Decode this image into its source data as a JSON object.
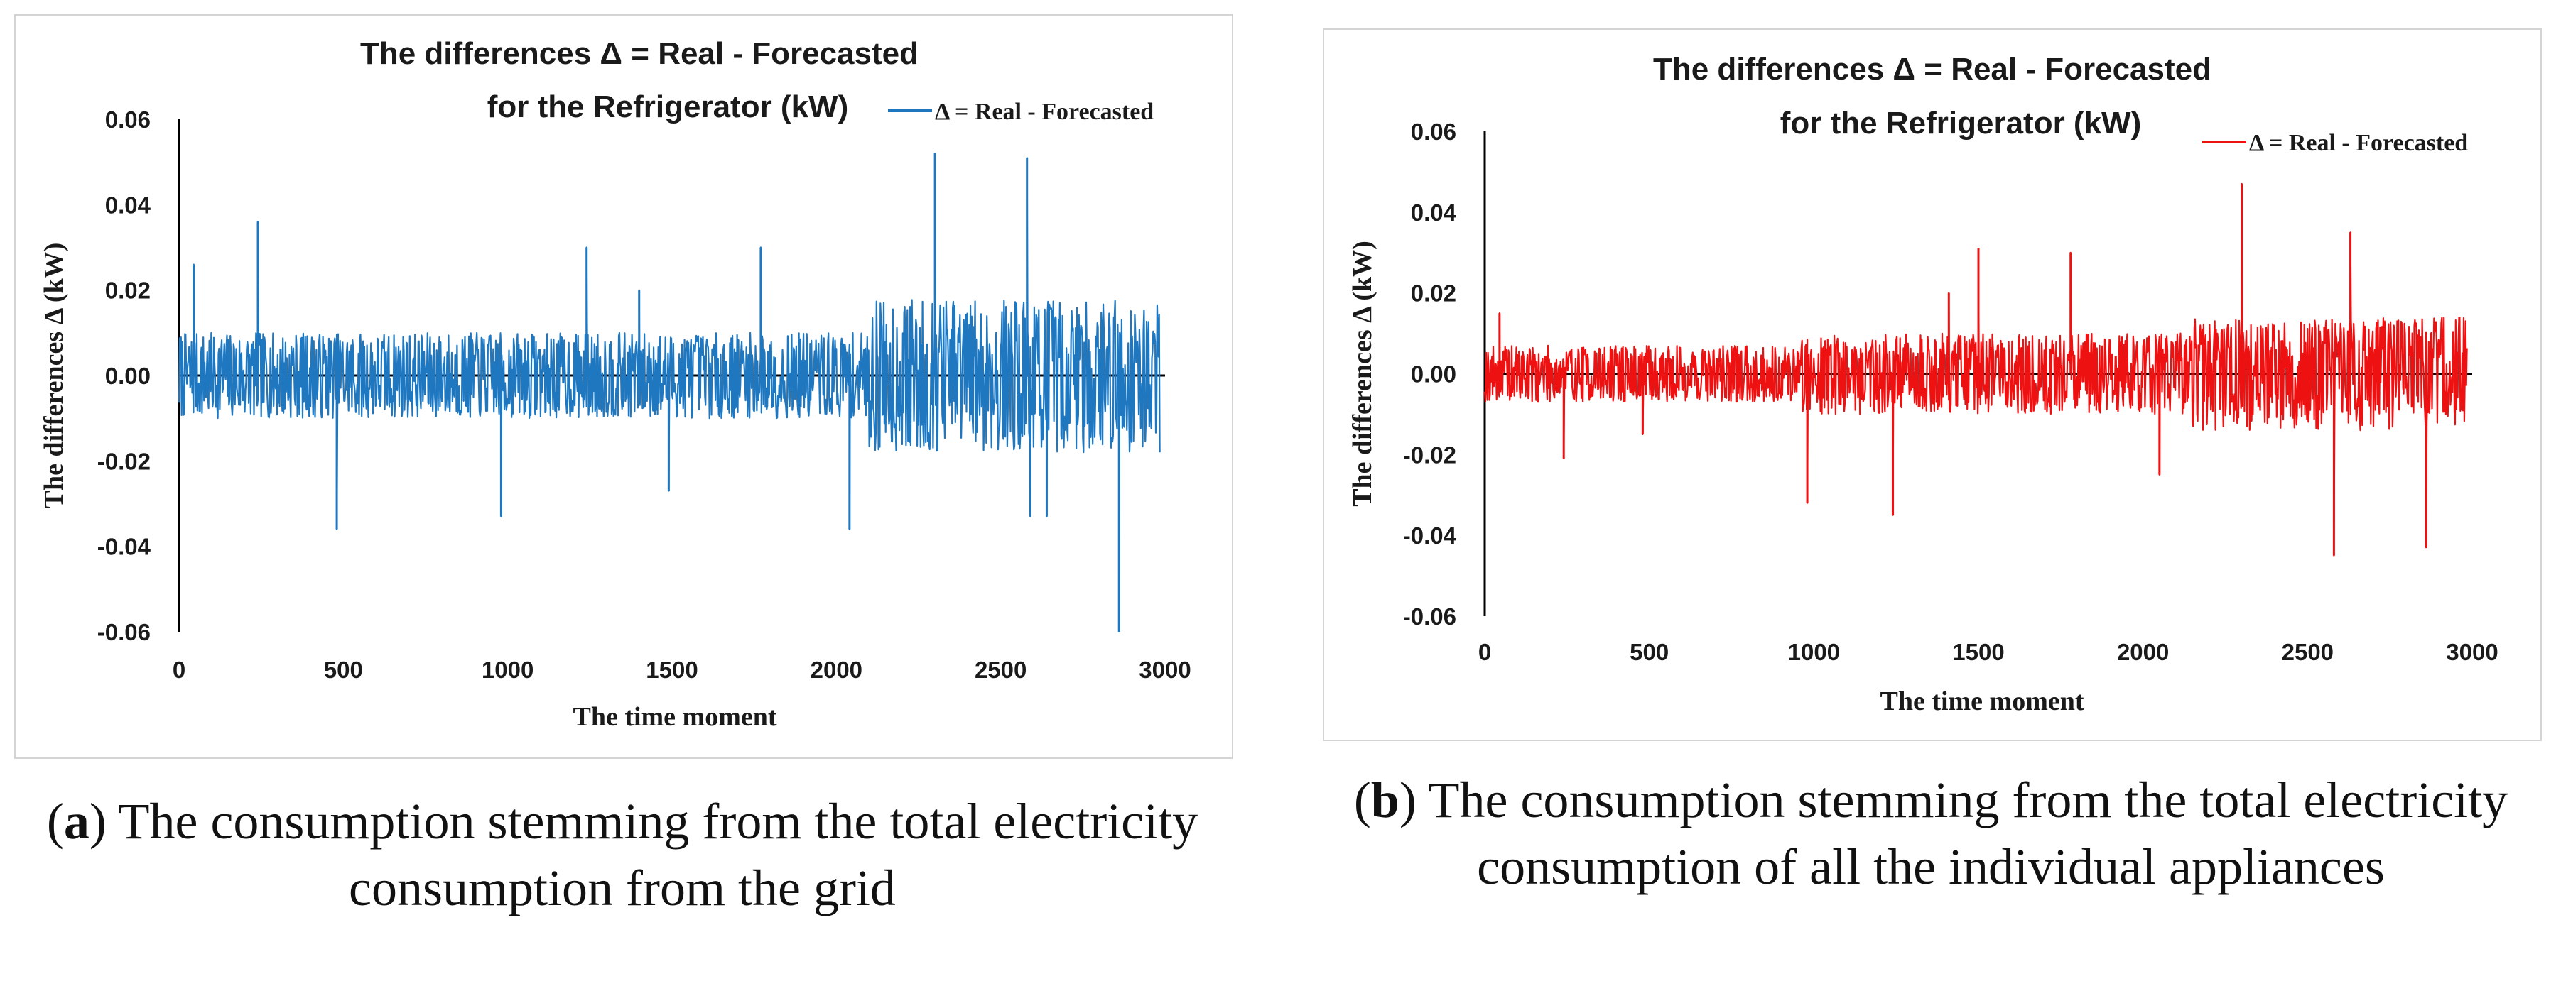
{
  "chart_data": [
    {
      "type": "line",
      "title": "The differences Δ = Real - Forecasted",
      "subtitle": "for the Refrigerator (kW)",
      "xlabel": "The time moment",
      "ylabel": "The differences Δ  (kW)",
      "legend": "Δ = Real - Forecasted",
      "legend_position": "top-right",
      "color": "#1f77c0",
      "xlim": [
        0,
        3000
      ],
      "ylim": [
        -0.06,
        0.06
      ],
      "x_ticks": [
        "0",
        "500",
        "1000",
        "1500",
        "2000",
        "2500",
        "3000"
      ],
      "y_ticks": [
        "0.06",
        "0.04",
        "0.02",
        "0.00",
        "-0.02",
        "-0.04",
        "-0.06"
      ],
      "x_range": [
        0,
        2985
      ],
      "segments": [
        {
          "from": 0,
          "to": 2100,
          "noise": 0.01
        },
        {
          "from": 2100,
          "to": 2985,
          "noise": 0.018
        }
      ],
      "spikes": [
        {
          "x": 45,
          "y": 0.026
        },
        {
          "x": 240,
          "y": 0.036
        },
        {
          "x": 480,
          "y": -0.036
        },
        {
          "x": 980,
          "y": -0.033
        },
        {
          "x": 1240,
          "y": 0.03
        },
        {
          "x": 1400,
          "y": 0.02
        },
        {
          "x": 1490,
          "y": -0.027
        },
        {
          "x": 1770,
          "y": 0.03
        },
        {
          "x": 2040,
          "y": -0.036
        },
        {
          "x": 2300,
          "y": 0.052
        },
        {
          "x": 2580,
          "y": 0.051
        },
        {
          "x": 2590,
          "y": -0.033
        },
        {
          "x": 2640,
          "y": -0.033
        },
        {
          "x": 2860,
          "y": -0.06
        }
      ],
      "caption_label": "a",
      "caption_text": "The consumption stemming from the total electricity consumption from the grid"
    },
    {
      "type": "line",
      "title": "The differences Δ = Real - Forecasted",
      "subtitle": "for the Refrigerator (kW)",
      "xlabel": "The time moment",
      "ylabel": "The differences Δ  (kW)",
      "legend": "Δ = Real - Forecasted",
      "legend_position": "top-right",
      "color": "#ee1111",
      "xlim": [
        0,
        3000
      ],
      "ylim": [
        -0.06,
        0.06
      ],
      "x_ticks": [
        "0",
        "500",
        "1000",
        "1500",
        "2000",
        "2500",
        "3000"
      ],
      "y_ticks": [
        "0.06",
        "0.04",
        "0.02",
        "0.00",
        "-0.02",
        "-0.04",
        "-0.06"
      ],
      "x_range": [
        0,
        2985
      ],
      "segments": [
        {
          "from": 0,
          "to": 960,
          "noise": 0.007
        },
        {
          "from": 960,
          "to": 2150,
          "noise": 0.01
        },
        {
          "from": 2150,
          "to": 2985,
          "noise": 0.014
        }
      ],
      "spikes": [
        {
          "x": 45,
          "y": 0.015
        },
        {
          "x": 240,
          "y": -0.021
        },
        {
          "x": 480,
          "y": -0.015
        },
        {
          "x": 980,
          "y": -0.032
        },
        {
          "x": 1240,
          "y": -0.035
        },
        {
          "x": 1410,
          "y": 0.02
        },
        {
          "x": 1500,
          "y": 0.031
        },
        {
          "x": 1780,
          "y": 0.03
        },
        {
          "x": 2050,
          "y": -0.025
        },
        {
          "x": 2300,
          "y": 0.047
        },
        {
          "x": 2580,
          "y": -0.045
        },
        {
          "x": 2630,
          "y": 0.035
        },
        {
          "x": 2860,
          "y": -0.043
        }
      ],
      "caption_label": "b",
      "caption_text": "The consumption stemming from the total electricity consumption of all the individual appliances"
    }
  ]
}
